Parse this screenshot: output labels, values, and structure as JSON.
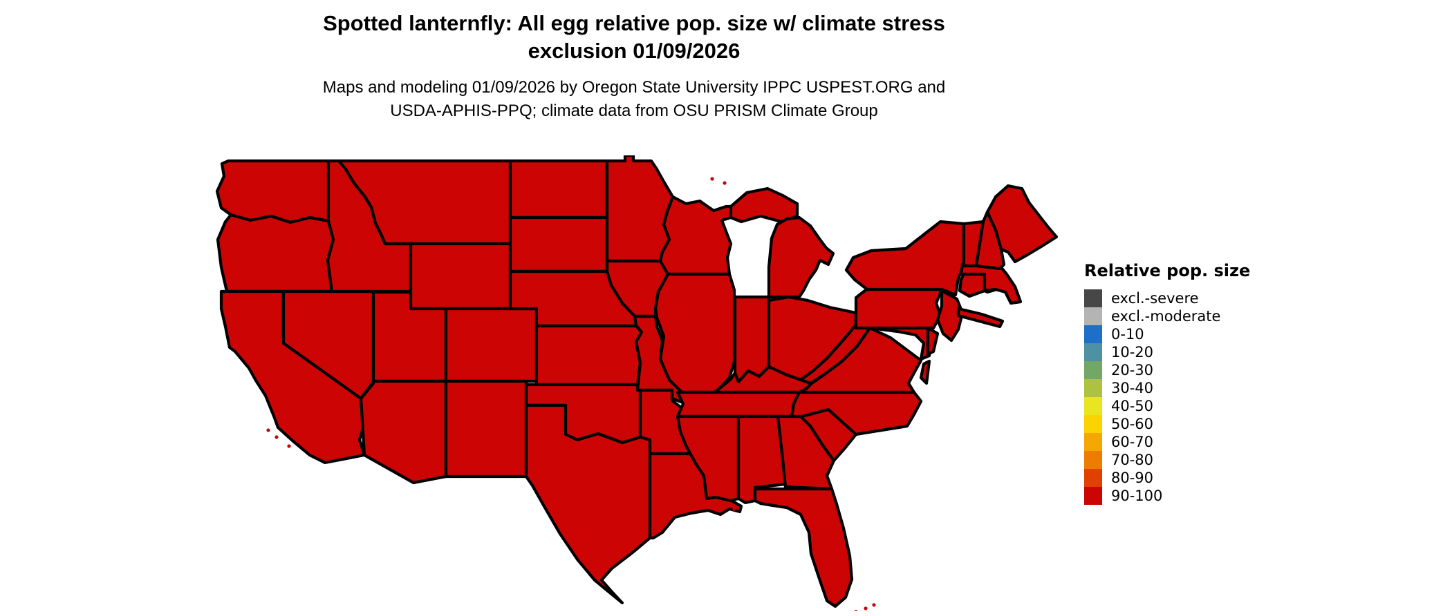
{
  "title": {
    "line1": "Spotted lanternfly: All egg relative pop. size w/ climate stress",
    "line2": "exclusion 01/09/2026"
  },
  "subtitle": {
    "line1": "Maps and modeling 01/09/2026 by Oregon State University IPPC USPEST.ORG and",
    "line2": "USDA-APHIS-PPQ; climate data from OSU PRISM Climate Group"
  },
  "legend": {
    "title": "Relative pop. size",
    "items": [
      {
        "label": "excl.-severe",
        "color": "#474747"
      },
      {
        "label": "excl.-moderate",
        "color": "#b4b4b4"
      },
      {
        "label": "0-10",
        "color": "#1e6fc7"
      },
      {
        "label": "10-20",
        "color": "#4d91a3"
      },
      {
        "label": "20-30",
        "color": "#72a766"
      },
      {
        "label": "30-40",
        "color": "#adc23e"
      },
      {
        "label": "40-50",
        "color": "#e9e51f"
      },
      {
        "label": "50-60",
        "color": "#fbd300"
      },
      {
        "label": "60-70",
        "color": "#f3a700"
      },
      {
        "label": "70-80",
        "color": "#ec7d00"
      },
      {
        "label": "80-90",
        "color": "#e14100"
      },
      {
        "label": "90-100",
        "color": "#cc0404"
      }
    ]
  },
  "map": {
    "region": "Contiguous United States with state boundaries",
    "fill_category": "90-100",
    "fill_color": "#cc0404",
    "border_color": "#000000"
  }
}
